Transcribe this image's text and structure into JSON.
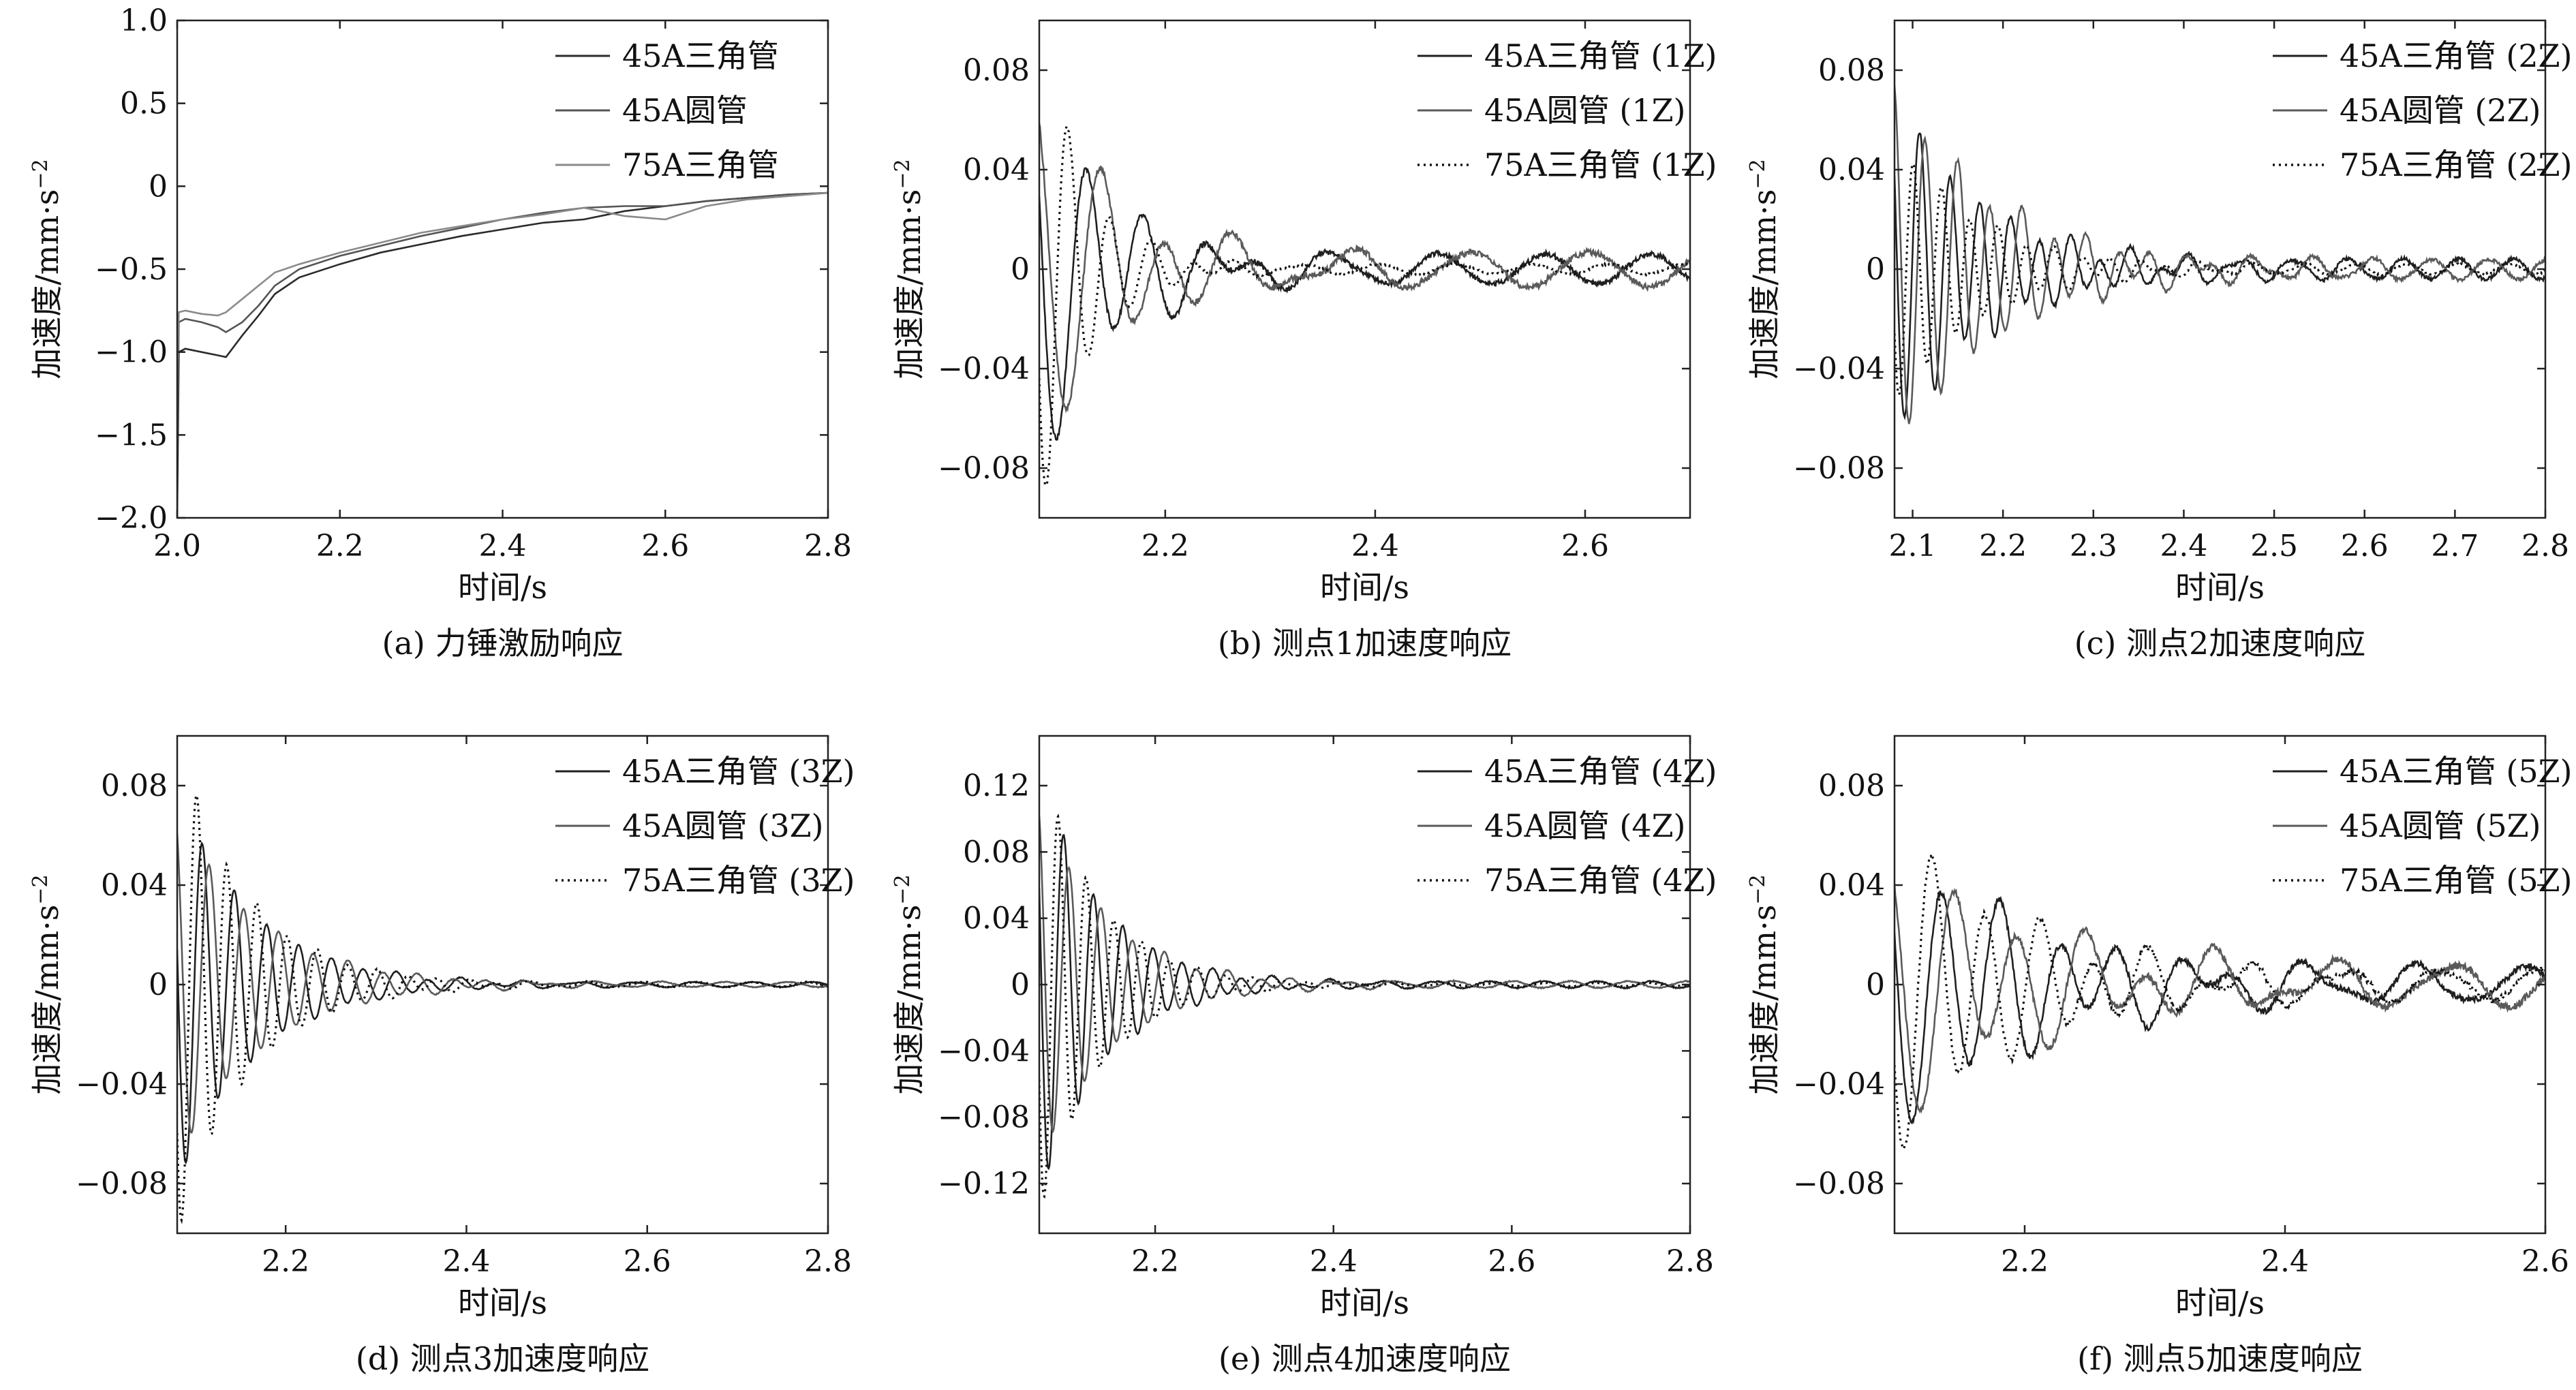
{
  "figure": {
    "ylabel": "加速度/mm·s",
    "ylabel_sup": "−2",
    "xlabel": "时间/s"
  },
  "chart_data": [
    {
      "id": "a",
      "type": "line",
      "caption": "(a) 力锤激励响应",
      "xlabel": "时间/s",
      "ylabel": "加速度/mm·s⁻²",
      "xlim": [
        2.0,
        2.8
      ],
      "ylim": [
        -2.0,
        1.0
      ],
      "xticks": [
        2.0,
        2.2,
        2.4,
        2.6,
        2.8
      ],
      "xtick_labels": [
        "2.0",
        "2.2",
        "2.4",
        "2.6",
        "2.8"
      ],
      "yticks": [
        -2.0,
        -1.5,
        -1.0,
        -0.5,
        0,
        0.5,
        1.0
      ],
      "ytick_labels": [
        "−2.0",
        "−1.5",
        "−1.0",
        "−0.5",
        "0",
        "0.5",
        "1.0"
      ],
      "legend_position": "top-right",
      "grid": false,
      "series": [
        {
          "name": "45A三角管",
          "color": "#2b2b2b",
          "dash": "solid",
          "x": [
            2.0,
            2.002,
            2.01,
            2.03,
            2.05,
            2.06,
            2.08,
            2.1,
            2.12,
            2.15,
            2.2,
            2.25,
            2.3,
            2.35,
            2.4,
            2.45,
            2.5,
            2.55,
            2.6,
            2.65,
            2.7,
            2.75,
            2.8
          ],
          "y": [
            -2.0,
            -1.0,
            -0.98,
            -1.0,
            -1.02,
            -1.03,
            -0.9,
            -0.78,
            -0.65,
            -0.55,
            -0.47,
            -0.4,
            -0.35,
            -0.3,
            -0.26,
            -0.22,
            -0.2,
            -0.15,
            -0.12,
            -0.09,
            -0.07,
            -0.05,
            -0.04
          ]
        },
        {
          "name": "45A圆管",
          "color": "#555555",
          "dash": "solid",
          "x": [
            2.0,
            2.002,
            2.01,
            2.03,
            2.05,
            2.06,
            2.08,
            2.1,
            2.12,
            2.15,
            2.2,
            2.25,
            2.3,
            2.35,
            2.4,
            2.45,
            2.5,
            2.55,
            2.6,
            2.65,
            2.7,
            2.75,
            2.8
          ],
          "y": [
            -1.6,
            -0.82,
            -0.8,
            -0.82,
            -0.85,
            -0.88,
            -0.82,
            -0.72,
            -0.6,
            -0.5,
            -0.42,
            -0.36,
            -0.3,
            -0.25,
            -0.2,
            -0.16,
            -0.13,
            -0.12,
            -0.12,
            -0.09,
            -0.07,
            -0.05,
            -0.04
          ]
        },
        {
          "name": "75A三角管",
          "color": "#8a8a8a",
          "dash": "solid",
          "x": [
            2.0,
            2.002,
            2.01,
            2.03,
            2.05,
            2.06,
            2.08,
            2.1,
            2.12,
            2.15,
            2.2,
            2.25,
            2.3,
            2.35,
            2.4,
            2.45,
            2.5,
            2.55,
            2.6,
            2.65,
            2.7,
            2.75,
            2.8
          ],
          "y": [
            -1.1,
            -0.76,
            -0.75,
            -0.77,
            -0.78,
            -0.76,
            -0.68,
            -0.6,
            -0.52,
            -0.47,
            -0.4,
            -0.34,
            -0.28,
            -0.24,
            -0.2,
            -0.17,
            -0.13,
            -0.18,
            -0.2,
            -0.12,
            -0.08,
            -0.06,
            -0.04
          ]
        }
      ]
    },
    {
      "id": "b",
      "type": "line",
      "caption": "(b) 测点1加速度响应",
      "xlabel": "时间/s",
      "ylabel": "加速度/mm·s⁻²",
      "xlim": [
        2.08,
        2.7
      ],
      "ylim": [
        -0.1,
        0.1
      ],
      "xticks": [
        2.2,
        2.4,
        2.6
      ],
      "xtick_labels": [
        "2.2",
        "2.4",
        "2.6"
      ],
      "yticks": [
        -0.08,
        -0.04,
        0,
        0.04,
        0.08
      ],
      "ytick_labels": [
        "−0.08",
        "−0.04",
        "0",
        "0.04",
        "0.08"
      ],
      "legend_position": "top-right",
      "grid": false,
      "series": [
        {
          "name": "45A三角管 (1Z)",
          "color": "#1f1f1f",
          "dash": "solid",
          "amp": 0.08,
          "freq": 18,
          "decay": 14,
          "phase": 1.2,
          "floor": 0.006
        },
        {
          "name": "45A圆管 (1Z)",
          "color": "#5a5a5a",
          "dash": "solid",
          "amp": 0.07,
          "freq": 16,
          "decay": 12,
          "phase": 0.4,
          "floor": 0.007
        },
        {
          "name": "75A三角管 (1Z)",
          "color": "#111111",
          "dash": "dotted",
          "amp": 0.1,
          "freq": 25,
          "decay": 22,
          "phase": 2.0,
          "floor": 0.002
        }
      ]
    },
    {
      "id": "c",
      "type": "line",
      "caption": "(c) 测点2加速度响应",
      "xlabel": "时间/s",
      "ylabel": "加速度/mm·s⁻²",
      "xlim": [
        2.08,
        2.8
      ],
      "ylim": [
        -0.1,
        0.1
      ],
      "xticks": [
        2.1,
        2.2,
        2.3,
        2.4,
        2.5,
        2.6,
        2.7,
        2.8
      ],
      "xtick_labels": [
        "2.1",
        "2.2",
        "2.3",
        "2.4",
        "2.5",
        "2.6",
        "2.7",
        "2.8"
      ],
      "yticks": [
        -0.08,
        -0.04,
        0,
        0.04,
        0.08
      ],
      "ytick_labels": [
        "−0.08",
        "−0.04",
        "0",
        "0.04",
        "0.08"
      ],
      "legend_position": "top-right",
      "grid": false,
      "series": [
        {
          "name": "45A三角管 (2Z)",
          "color": "#1f1f1f",
          "dash": "solid",
          "amp": 0.07,
          "freq": 30,
          "decay": 10,
          "phase": 1.0,
          "floor": 0.004
        },
        {
          "name": "45A圆管 (2Z)",
          "color": "#5a5a5a",
          "dash": "solid",
          "amp": 0.075,
          "freq": 28,
          "decay": 9,
          "phase": 0.3,
          "floor": 0.004
        },
        {
          "name": "75A三角管 (2Z)",
          "color": "#111111",
          "dash": "dotted",
          "amp": 0.055,
          "freq": 32,
          "decay": 11,
          "phase": 2.1,
          "floor": 0.002
        }
      ]
    },
    {
      "id": "d",
      "type": "line",
      "caption": "(d) 测点3加速度响应",
      "xlabel": "时间/s",
      "ylabel": "加速度/mm·s⁻²",
      "xlim": [
        2.08,
        2.8
      ],
      "ylim": [
        -0.1,
        0.1
      ],
      "xticks": [
        2.2,
        2.4,
        2.6,
        2.8
      ],
      "xtick_labels": [
        "2.2",
        "2.4",
        "2.6",
        "2.8"
      ],
      "yticks": [
        -0.08,
        -0.04,
        0,
        0.04,
        0.08
      ],
      "ytick_labels": [
        "−0.08",
        "−0.04",
        "0",
        "0.04",
        "0.08"
      ],
      "legend_position": "top-right",
      "grid": false,
      "series": [
        {
          "name": "45A三角管 (3Z)",
          "color": "#1f1f1f",
          "dash": "solid",
          "amp": 0.08,
          "freq": 28,
          "decay": 12,
          "phase": 1.4,
          "floor": 0.001
        },
        {
          "name": "45A圆管 (3Z)",
          "color": "#5a5a5a",
          "dash": "solid",
          "amp": 0.07,
          "freq": 26,
          "decay": 11,
          "phase": 0.5,
          "floor": 0.001
        },
        {
          "name": "75A三角管 (3Z)",
          "color": "#111111",
          "dash": "dotted",
          "amp": 0.1,
          "freq": 30,
          "decay": 13,
          "phase": 2.2,
          "floor": 0.001
        }
      ]
    },
    {
      "id": "e",
      "type": "line",
      "caption": "(e) 测点4加速度响应",
      "xlabel": "时间/s",
      "ylabel": "加速度/mm·s⁻²",
      "xlim": [
        2.07,
        2.8
      ],
      "ylim": [
        -0.15,
        0.15
      ],
      "xticks": [
        2.2,
        2.4,
        2.6,
        2.8
      ],
      "xtick_labels": [
        "2.2",
        "2.4",
        "2.6",
        "2.8"
      ],
      "yticks": [
        -0.12,
        -0.08,
        -0.04,
        0,
        0.04,
        0.08,
        0.12
      ],
      "ytick_labels": [
        "−0.12",
        "−0.08",
        "−0.04",
        "0",
        "0.04",
        "0.08",
        "0.12"
      ],
      "legend_position": "top-right",
      "grid": false,
      "series": [
        {
          "name": "45A三角管 (4Z)",
          "color": "#1f1f1f",
          "dash": "solid",
          "amp": 0.13,
          "freq": 30,
          "decay": 14,
          "phase": 1.1,
          "floor": 0.002
        },
        {
          "name": "45A圆管 (4Z)",
          "color": "#5a5a5a",
          "dash": "solid",
          "amp": 0.11,
          "freq": 28,
          "decay": 13,
          "phase": 0.4,
          "floor": 0.002
        },
        {
          "name": "75A三角管 (4Z)",
          "color": "#111111",
          "dash": "dotted",
          "amp": 0.14,
          "freq": 32,
          "decay": 15,
          "phase": 2.0,
          "floor": 0.001
        }
      ]
    },
    {
      "id": "f",
      "type": "line",
      "caption": "(f) 测点5加速度响应",
      "xlabel": "时间/s",
      "ylabel": "加速度/mm·s⁻²",
      "xlim": [
        2.1,
        2.6
      ],
      "ylim": [
        -0.1,
        0.1
      ],
      "xticks": [
        2.2,
        2.4,
        2.6
      ],
      "xtick_labels": [
        "2.2",
        "2.4",
        "2.6"
      ],
      "yticks": [
        -0.08,
        -0.04,
        0,
        0.04,
        0.08
      ],
      "ytick_labels": [
        "−0.08",
        "−0.04",
        "0",
        "0.04",
        "0.08"
      ],
      "legend_position": "top-right",
      "grid": false,
      "series": [
        {
          "name": "45A三角管 (5Z)",
          "color": "#1f1f1f",
          "dash": "solid",
          "amp": 0.06,
          "freq": 22,
          "decay": 9,
          "phase": 1.3,
          "floor": 0.007
        },
        {
          "name": "45A圆管 (5Z)",
          "color": "#5a5a5a",
          "dash": "solid",
          "amp": 0.05,
          "freq": 20,
          "decay": 8,
          "phase": 0.6,
          "floor": 0.008
        },
        {
          "name": "75A三角管 (5Z)",
          "color": "#111111",
          "dash": "dotted",
          "amp": 0.065,
          "freq": 24,
          "decay": 10,
          "phase": 2.0,
          "floor": 0.006
        }
      ]
    }
  ]
}
